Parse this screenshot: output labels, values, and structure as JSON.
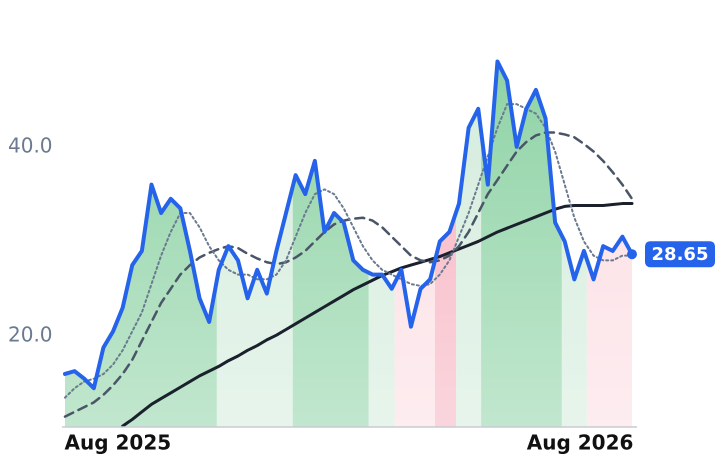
{
  "chart_data": {
    "type": "line",
    "x": [
      0,
      1,
      2,
      3,
      4,
      5,
      6,
      7,
      8,
      9,
      10,
      11,
      12,
      13,
      14,
      15,
      16,
      17,
      18,
      19,
      20,
      21,
      22,
      23,
      24,
      25,
      26,
      27,
      28,
      29,
      30,
      31,
      32,
      33,
      34,
      35,
      36,
      37,
      38,
      39,
      40,
      41,
      42,
      43,
      44,
      45,
      46,
      47,
      48,
      49,
      50,
      51,
      52,
      53,
      54,
      55,
      56,
      57,
      58,
      59
    ],
    "xlim": [
      0,
      59
    ],
    "xticks": [
      {
        "value": 5.5,
        "label": "Aug 2025"
      },
      {
        "value": 53.6,
        "label": "Aug 2026"
      }
    ],
    "ylim": [
      10.4,
      55.5
    ],
    "yticks": [
      {
        "value": 20,
        "label": "20.0"
      },
      {
        "value": 40,
        "label": "40.0"
      }
    ],
    "series": [
      {
        "color": "#2563eb",
        "style": "solid",
        "width": 4,
        "values": [
          16,
          16.3,
          15.5,
          14.5,
          18.8,
          20.5,
          23,
          27.5,
          29,
          36,
          33,
          34.5,
          33.5,
          29,
          24,
          21.5,
          27,
          29.5,
          28,
          24,
          27,
          24.5,
          29,
          33,
          37,
          35,
          38.5,
          31,
          33,
          32,
          28,
          27,
          26.5,
          26.5,
          25,
          27,
          21,
          25,
          26,
          30,
          31,
          34,
          42,
          44,
          36,
          49,
          47,
          40,
          44,
          46,
          43,
          32,
          30,
          26,
          29,
          26,
          29.5,
          29,
          30.5,
          28.65
        ]
      },
      {
        "color": "#6b7a8f",
        "style": "dotted",
        "width": 2,
        "values": [
          13.5,
          14.5,
          15.2,
          15.5,
          16,
          17,
          18.5,
          20.5,
          22.5,
          25.5,
          28.5,
          31,
          33,
          33,
          31.5,
          29.5,
          28,
          27,
          26.5,
          26.5,
          26,
          26,
          26.5,
          28,
          30.5,
          33,
          35,
          35.5,
          35,
          33.5,
          31.5,
          29.5,
          28,
          27,
          26.5,
          26,
          25.5,
          25.3,
          25.5,
          26.5,
          28,
          30.5,
          33,
          36,
          39,
          42,
          44.5,
          44.5,
          44,
          43.5,
          42,
          39.5,
          36,
          32.5,
          30,
          28.5,
          28,
          28,
          28.5,
          28.5
        ]
      },
      {
        "color": "#4a5568",
        "style": "dashed",
        "width": 2.5,
        "values": [
          11.5,
          12,
          12.5,
          13,
          13.8,
          14.8,
          16,
          17.5,
          19.5,
          21.5,
          23.5,
          25,
          26.5,
          27.5,
          28.3,
          28.8,
          29.2,
          29.5,
          29.3,
          28.7,
          28.2,
          27.8,
          27.6,
          27.8,
          28.3,
          29,
          30,
          31,
          31.8,
          32.2,
          32.4,
          32.5,
          32.2,
          31.5,
          30.5,
          29.5,
          28.5,
          28,
          27.8,
          28,
          28.5,
          29.5,
          31,
          33,
          35,
          36.5,
          38,
          39.5,
          40.5,
          41.2,
          41.5,
          41.5,
          41.3,
          41,
          40.3,
          39.5,
          38.5,
          37.3,
          36,
          34.5
        ]
      },
      {
        "color": "#1a202c",
        "style": "solid",
        "width": 3,
        "values": [
          null,
          null,
          null,
          null,
          null,
          null,
          10.5,
          11.2,
          12,
          12.8,
          13.4,
          14,
          14.6,
          15.2,
          15.8,
          16.3,
          16.8,
          17.4,
          17.9,
          18.5,
          19,
          19.6,
          20.1,
          20.7,
          21.3,
          21.9,
          22.5,
          23.1,
          23.7,
          24.3,
          24.9,
          25.4,
          25.9,
          26.4,
          26.8,
          27.2,
          27.5,
          27.8,
          28.1,
          28.4,
          28.8,
          29.2,
          29.6,
          30,
          30.5,
          31,
          31.4,
          31.8,
          32.2,
          32.6,
          33,
          33.4,
          33.7,
          33.8,
          33.8,
          33.8,
          33.8,
          33.9,
          34,
          34
        ]
      }
    ],
    "bands": [
      {
        "start": 0,
        "end": 15.8,
        "color": "#8fd3a6"
      },
      {
        "start": 15.8,
        "end": 23.7,
        "color": "#d4ecdc"
      },
      {
        "start": 23.7,
        "end": 31.6,
        "color": "#8fd3a6"
      },
      {
        "start": 31.6,
        "end": 34.3,
        "color": "#d4ecdc"
      },
      {
        "start": 34.3,
        "end": 38.5,
        "color": "#fcdde3"
      },
      {
        "start": 38.5,
        "end": 40.7,
        "color": "#f7b3c1"
      },
      {
        "start": 40.7,
        "end": 43.3,
        "color": "#d4ecdc"
      },
      {
        "start": 43.3,
        "end": 51.7,
        "color": "#8fd3a6"
      },
      {
        "start": 51.7,
        "end": 54.3,
        "color": "#d4ecdc"
      },
      {
        "start": 54.3,
        "end": 59,
        "color": "#fcdde3"
      }
    ]
  }
}
